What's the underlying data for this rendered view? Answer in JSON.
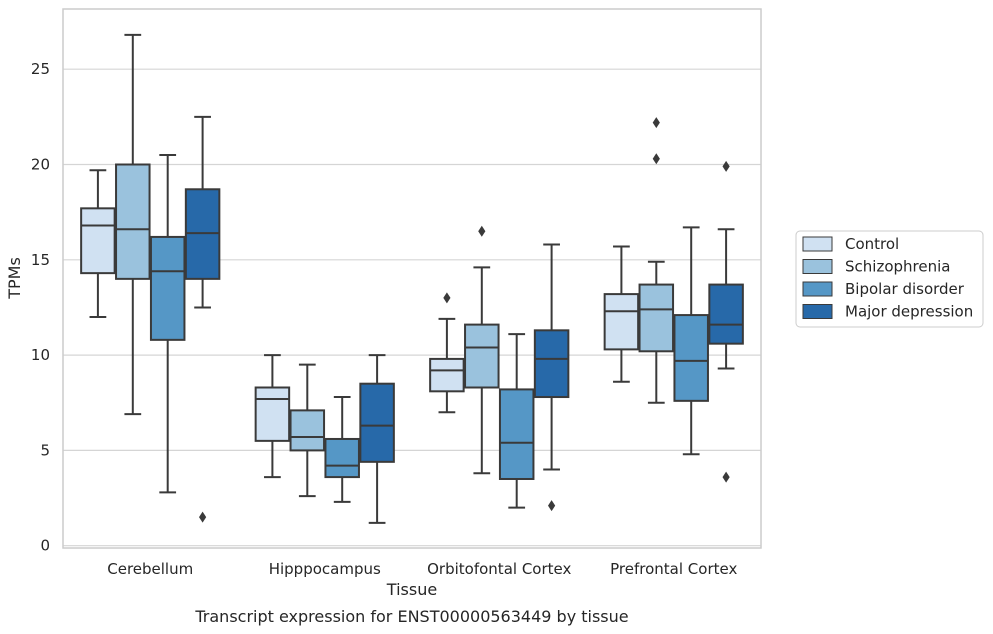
{
  "caption": "Transcript expression for ENST00000563449 by tissue",
  "chart_data": {
    "type": "box",
    "xlabel": "Tissue",
    "ylabel": "TPMs",
    "ylim": [
      0,
      28
    ],
    "yticks": [
      0,
      5,
      10,
      15,
      20,
      25
    ],
    "grid": true,
    "legend_position": "right",
    "categories": [
      "Cerebellum",
      "Hipppocampus",
      "Orbitofontal Cortex",
      "Prefrontal Cortex"
    ],
    "series": [
      {
        "name": "Control",
        "color": "#d0e1f2",
        "boxes": [
          {
            "whislo": 12.0,
            "q1": 14.3,
            "med": 16.8,
            "q3": 17.7,
            "whishi": 19.7,
            "fliers": []
          },
          {
            "whislo": 3.6,
            "q1": 5.5,
            "med": 7.7,
            "q3": 8.3,
            "whishi": 10.0,
            "fliers": []
          },
          {
            "whislo": 7.0,
            "q1": 8.1,
            "med": 9.2,
            "q3": 9.8,
            "whishi": 11.9,
            "fliers": [
              13.0
            ]
          },
          {
            "whislo": 8.6,
            "q1": 10.3,
            "med": 12.3,
            "q3": 13.2,
            "whishi": 15.7,
            "fliers": []
          }
        ]
      },
      {
        "name": "Schizophrenia",
        "color": "#9ac2dd",
        "boxes": [
          {
            "whislo": 6.9,
            "q1": 14.0,
            "med": 16.6,
            "q3": 20.0,
            "whishi": 26.8,
            "fliers": []
          },
          {
            "whislo": 2.6,
            "q1": 5.0,
            "med": 5.7,
            "q3": 7.1,
            "whishi": 9.5,
            "fliers": []
          },
          {
            "whislo": 3.8,
            "q1": 8.3,
            "med": 10.4,
            "q3": 11.6,
            "whishi": 14.6,
            "fliers": [
              16.5
            ]
          },
          {
            "whislo": 7.5,
            "q1": 10.2,
            "med": 12.4,
            "q3": 13.7,
            "whishi": 14.9,
            "fliers": [
              20.3,
              22.2
            ]
          }
        ]
      },
      {
        "name": "Bipolar disorder",
        "color": "#5597c6",
        "boxes": [
          {
            "whislo": 2.8,
            "q1": 10.8,
            "med": 14.4,
            "q3": 16.2,
            "whishi": 20.5,
            "fliers": []
          },
          {
            "whislo": 2.3,
            "q1": 3.6,
            "med": 4.2,
            "q3": 5.6,
            "whishi": 7.8,
            "fliers": []
          },
          {
            "whislo": 2.0,
            "q1": 3.5,
            "med": 5.4,
            "q3": 8.2,
            "whishi": 11.1,
            "fliers": []
          },
          {
            "whislo": 4.8,
            "q1": 7.6,
            "med": 9.7,
            "q3": 12.1,
            "whishi": 16.7,
            "fliers": []
          }
        ]
      },
      {
        "name": "Major depression",
        "color": "#2769a9",
        "boxes": [
          {
            "whislo": 12.5,
            "q1": 14.0,
            "med": 16.4,
            "q3": 18.7,
            "whishi": 22.5,
            "fliers": [
              1.5
            ]
          },
          {
            "whislo": 1.2,
            "q1": 4.4,
            "med": 6.3,
            "q3": 8.5,
            "whishi": 10.0,
            "fliers": []
          },
          {
            "whislo": 4.0,
            "q1": 7.8,
            "med": 9.8,
            "q3": 11.3,
            "whishi": 15.8,
            "fliers": [
              2.1
            ]
          },
          {
            "whislo": 9.3,
            "q1": 10.6,
            "med": 11.6,
            "q3": 13.7,
            "whishi": 16.6,
            "fliers": [
              3.6,
              19.9
            ]
          }
        ]
      }
    ]
  }
}
